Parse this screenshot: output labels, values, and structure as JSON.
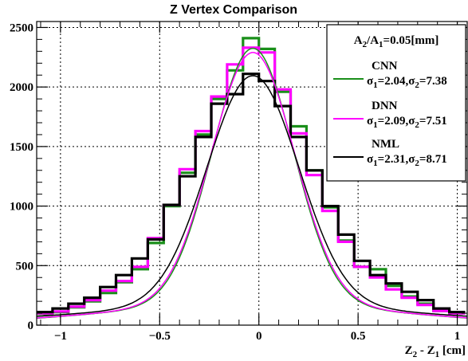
{
  "chart_data": {
    "type": "line",
    "title": "Z Vertex Comparison",
    "xlabel": "Z2 - Z1 [cm]",
    "ylabel": "",
    "xlim": [
      -1.12,
      1.05
    ],
    "ylim": [
      0,
      2550
    ],
    "grid": true,
    "legend_position": "top-right",
    "legend_header": "A2/A1=0.05[mm]",
    "x_ticks": [
      -1,
      -0.5,
      0,
      0.5,
      1
    ],
    "x_tick_labels": [
      "−1",
      "−0.5",
      "0",
      "0.5",
      "1"
    ],
    "y_ticks": [
      0,
      500,
      1000,
      1500,
      2000,
      2500
    ],
    "y_tick_labels": [
      "0",
      "500",
      "1000",
      "1500",
      "2000",
      "2500"
    ],
    "bin_edges": [
      -1.12,
      -1.04,
      -0.96,
      -0.88,
      -0.8,
      -0.72,
      -0.64,
      -0.56,
      -0.48,
      -0.4,
      -0.32,
      -0.24,
      -0.16,
      -0.08,
      0.0,
      0.08,
      0.16,
      0.24,
      0.32,
      0.4,
      0.48,
      0.56,
      0.64,
      0.72,
      0.8,
      0.88,
      0.96,
      1.04
    ],
    "series": [
      {
        "name": "CNN",
        "stats": "σ1=2.04,σ2=7.38",
        "color": "#1a8f1a",
        "histogram": [
          95,
          110,
          150,
          200,
          270,
          360,
          470,
          690,
          1000,
          1280,
          1600,
          1900,
          2140,
          2410,
          2320,
          1960,
          1670,
          1300,
          990,
          710,
          490,
          470,
          330,
          240,
          180,
          120,
          100
        ],
        "fit": {
          "amp": 2265,
          "mu": -0.03,
          "s1": 0.204,
          "s2": 0.738,
          "ratio": 0.05
        }
      },
      {
        "name": "DNN",
        "stats": "σ1=2.09,σ2=7.51",
        "color": "#ff00ff",
        "histogram": [
          100,
          115,
          155,
          210,
          290,
          370,
          490,
          730,
          1010,
          1310,
          1630,
          1920,
          2190,
          2330,
          2290,
          1980,
          1610,
          1260,
          960,
          700,
          490,
          400,
          300,
          230,
          170,
          120,
          100
        ],
        "fit": {
          "amp": 2230,
          "mu": -0.03,
          "s1": 0.209,
          "s2": 0.751,
          "ratio": 0.05
        }
      },
      {
        "name": "NML",
        "stats": "σ1=2.31,σ2=8.71",
        "color": "#000000",
        "histogram": [
          110,
          140,
          180,
          230,
          320,
          420,
          560,
          720,
          1010,
          1250,
          1580,
          1860,
          1940,
          2110,
          2050,
          1840,
          1580,
          1300,
          1000,
          760,
          540,
          420,
          350,
          280,
          210,
          140,
          110
        ],
        "fit": {
          "amp": 2035,
          "mu": -0.03,
          "s1": 0.231,
          "s2": 0.871,
          "ratio": 0.05
        }
      }
    ]
  }
}
